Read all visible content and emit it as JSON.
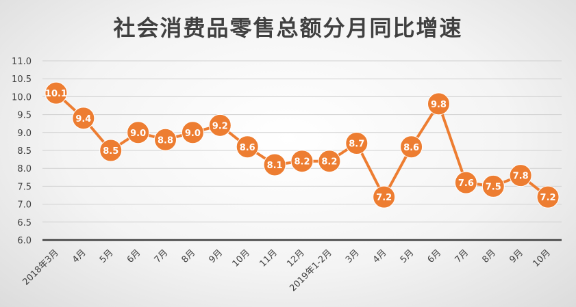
{
  "chart_data": {
    "type": "line",
    "title": "社会消费品零售总额分月同比增速",
    "xlabel": "",
    "ylabel": "",
    "ylim": [
      6.0,
      11.0
    ],
    "yticks": [
      "6.0",
      "6.5",
      "7.0",
      "7.5",
      "8.0",
      "8.5",
      "9.0",
      "9.5",
      "10.0",
      "10.5",
      "11.0"
    ],
    "categories": [
      "2018年3月",
      "4月",
      "5月",
      "6月",
      "7月",
      "8月",
      "9月",
      "10月",
      "11月",
      "12月",
      "2019年1-2月",
      "3月",
      "4月",
      "5月",
      "6月",
      "7月",
      "8月",
      "9月",
      "10月"
    ],
    "values": [
      10.1,
      9.4,
      8.5,
      9.0,
      8.8,
      9.0,
      9.2,
      8.6,
      8.1,
      8.2,
      8.2,
      8.7,
      7.2,
      8.6,
      9.8,
      7.6,
      7.5,
      7.8,
      7.2
    ],
    "value_labels": [
      "10.1",
      "9.4",
      "8.5",
      "9.0",
      "8.8",
      "9.0",
      "9.2",
      "8.6",
      "8.1",
      "8.2",
      "8.2",
      "8.7",
      "7.2",
      "8.6",
      "9.8",
      "7.6",
      "7.5",
      "7.8",
      "7.2"
    ],
    "grid": true,
    "line_color": "#ED7D31",
    "grid_color": "#d0d0d0",
    "axis_color": "#404040"
  }
}
